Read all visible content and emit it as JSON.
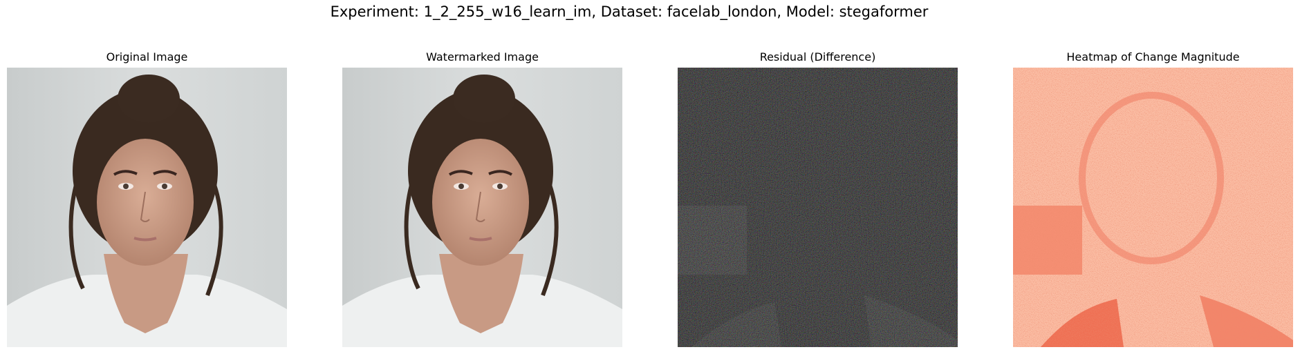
{
  "figure": {
    "suptitle": "Experiment: 1_2_255_w16_learn_im, Dataset: facelab_london, Model: stegaformer"
  },
  "panels": [
    {
      "title": "Original Image",
      "kind": "photo"
    },
    {
      "title": "Watermarked Image",
      "kind": "photo"
    },
    {
      "title": "Residual (Difference)",
      "kind": "residual"
    },
    {
      "title": "Heatmap of Change Magnitude",
      "kind": "heatmap"
    }
  ],
  "colors": {
    "photo_background": "#d3d6d6",
    "hair": "#3a2a20",
    "skin": "#c69a85",
    "shirt": "#eef0f0",
    "residual_background": "#1e1e1e",
    "heatmap_background": "#fbbfa6",
    "heatmap_strong": "#e5533a"
  }
}
